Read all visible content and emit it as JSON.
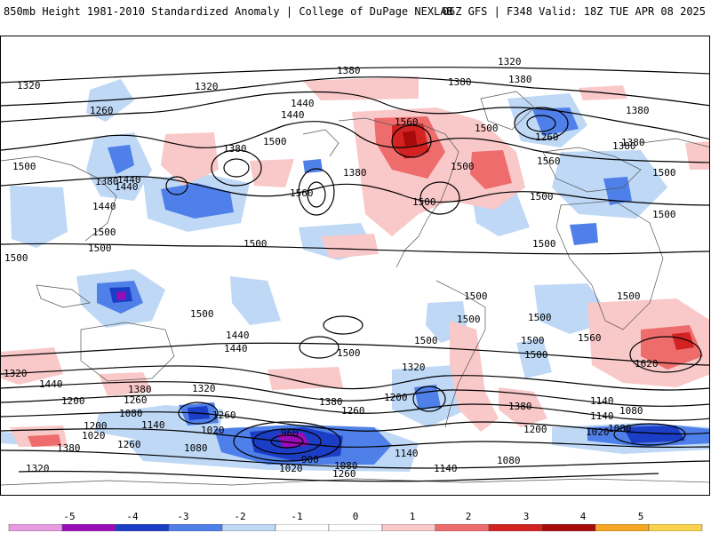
{
  "header": {
    "title_left": "850mb Height 1981-2010 Standardized Anomaly | College of DuPage NEXLAB",
    "title_right": "06Z GFS | F348 Valid: 18Z TUE APR 08 2025"
  },
  "map": {
    "contour_labels": [
      {
        "text": "1320"
      },
      {
        "text": "1320"
      },
      {
        "text": "1380"
      },
      {
        "text": "1320"
      },
      {
        "text": "1380"
      },
      {
        "text": "1380"
      },
      {
        "text": "1260"
      },
      {
        "text": "1440"
      },
      {
        "text": "1440"
      },
      {
        "text": "1380"
      },
      {
        "text": "1560"
      },
      {
        "text": "1500"
      },
      {
        "text": "1260"
      },
      {
        "text": "1380"
      },
      {
        "text": "1380"
      },
      {
        "text": "1440"
      },
      {
        "text": "1380"
      },
      {
        "text": "1380"
      },
      {
        "text": "1500"
      },
      {
        "text": "1500"
      },
      {
        "text": "1380"
      },
      {
        "text": "1500"
      },
      {
        "text": "1560"
      },
      {
        "text": "1440"
      },
      {
        "text": "1500"
      },
      {
        "text": "1440"
      },
      {
        "text": "1560"
      },
      {
        "text": "1500"
      },
      {
        "text": "1500"
      },
      {
        "text": "1500"
      },
      {
        "text": "1500"
      },
      {
        "text": "1500"
      },
      {
        "text": "1500"
      },
      {
        "text": "1500"
      },
      {
        "text": "1500"
      },
      {
        "text": "1500"
      },
      {
        "text": "1500"
      },
      {
        "text": "1500"
      },
      {
        "text": "1500"
      },
      {
        "text": "1500"
      },
      {
        "text": "1500"
      },
      {
        "text": "1440"
      },
      {
        "text": "1320"
      },
      {
        "text": "1560"
      },
      {
        "text": "1620"
      },
      {
        "text": "1500"
      },
      {
        "text": "1500"
      },
      {
        "text": "1440"
      },
      {
        "text": "1500"
      },
      {
        "text": "1320"
      },
      {
        "text": "1440"
      },
      {
        "text": "1380"
      },
      {
        "text": "1320"
      },
      {
        "text": "1200"
      },
      {
        "text": "1260"
      },
      {
        "text": "1080"
      },
      {
        "text": "1140"
      },
      {
        "text": "1200"
      },
      {
        "text": "1380"
      },
      {
        "text": "1260"
      },
      {
        "text": "1200"
      },
      {
        "text": "1260"
      },
      {
        "text": "1380"
      },
      {
        "text": "1140"
      },
      {
        "text": "1080"
      },
      {
        "text": "1020"
      },
      {
        "text": "1020"
      },
      {
        "text": "960"
      },
      {
        "text": "900"
      },
      {
        "text": "1080"
      },
      {
        "text": "1260"
      },
      {
        "text": "1080"
      },
      {
        "text": "1140"
      },
      {
        "text": "1140"
      },
      {
        "text": "1020"
      },
      {
        "text": "1080"
      },
      {
        "text": "1020"
      },
      {
        "text": "1380"
      },
      {
        "text": "1320"
      },
      {
        "text": "1200"
      },
      {
        "text": "1260"
      },
      {
        "text": "1080"
      },
      {
        "text": "1140"
      }
    ]
  },
  "colors": {
    "anom_m5": "#e79be0",
    "anom_m4": "#9a0cb8",
    "anom_m3": "#1c3dc5",
    "anom_m2": "#4f7fe8",
    "anom_m1": "#bed8f6",
    "anom_p1": "#f9c8c8",
    "anom_p2": "#ee6c6c",
    "anom_p3": "#d32222",
    "anom_p4": "#a60a0a",
    "anom_p5": "#f5a623",
    "anom_p6": "#f9d34d"
  },
  "colorbar": {
    "ticks": [
      "-5",
      "-4",
      "-3",
      "-2",
      "-1",
      "0",
      "1",
      "2",
      "3",
      "4",
      "5"
    ]
  }
}
